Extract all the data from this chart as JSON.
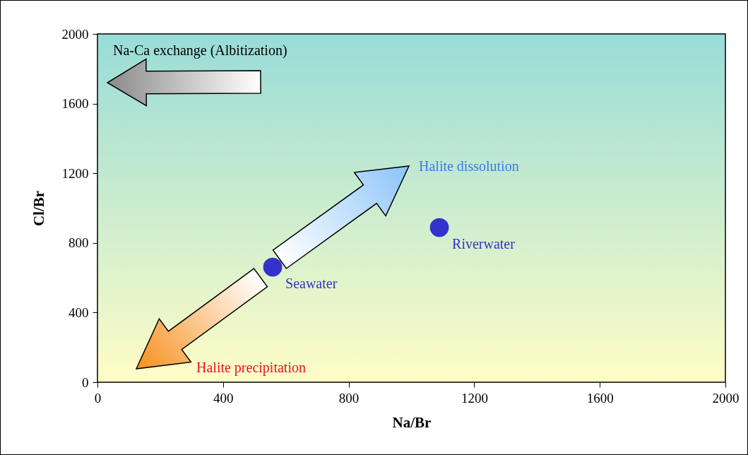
{
  "chart_data": {
    "type": "scatter",
    "xlabel": "Na/Br",
    "ylabel": "Cl/Br",
    "xlim": [
      0,
      2000
    ],
    "ylim": [
      0,
      2000
    ],
    "xticks": [
      0,
      400,
      800,
      1200,
      1600,
      2000
    ],
    "yticks": [
      0,
      400,
      800,
      1200,
      1600,
      2000
    ],
    "grid": false,
    "legend": false,
    "marker": "circle",
    "series": [
      {
        "name": "Seawater",
        "color": "#3333cc",
        "x": [
          558
        ],
        "values": [
          661
        ]
      },
      {
        "name": "Riverwater",
        "color": "#3333cc",
        "x": [
          1089
        ],
        "values": [
          888
        ]
      }
    ],
    "annotations": [
      "Na-Ca exchange (Albitization)",
      "Halite dissolution",
      "Halite precipitation"
    ]
  }
}
